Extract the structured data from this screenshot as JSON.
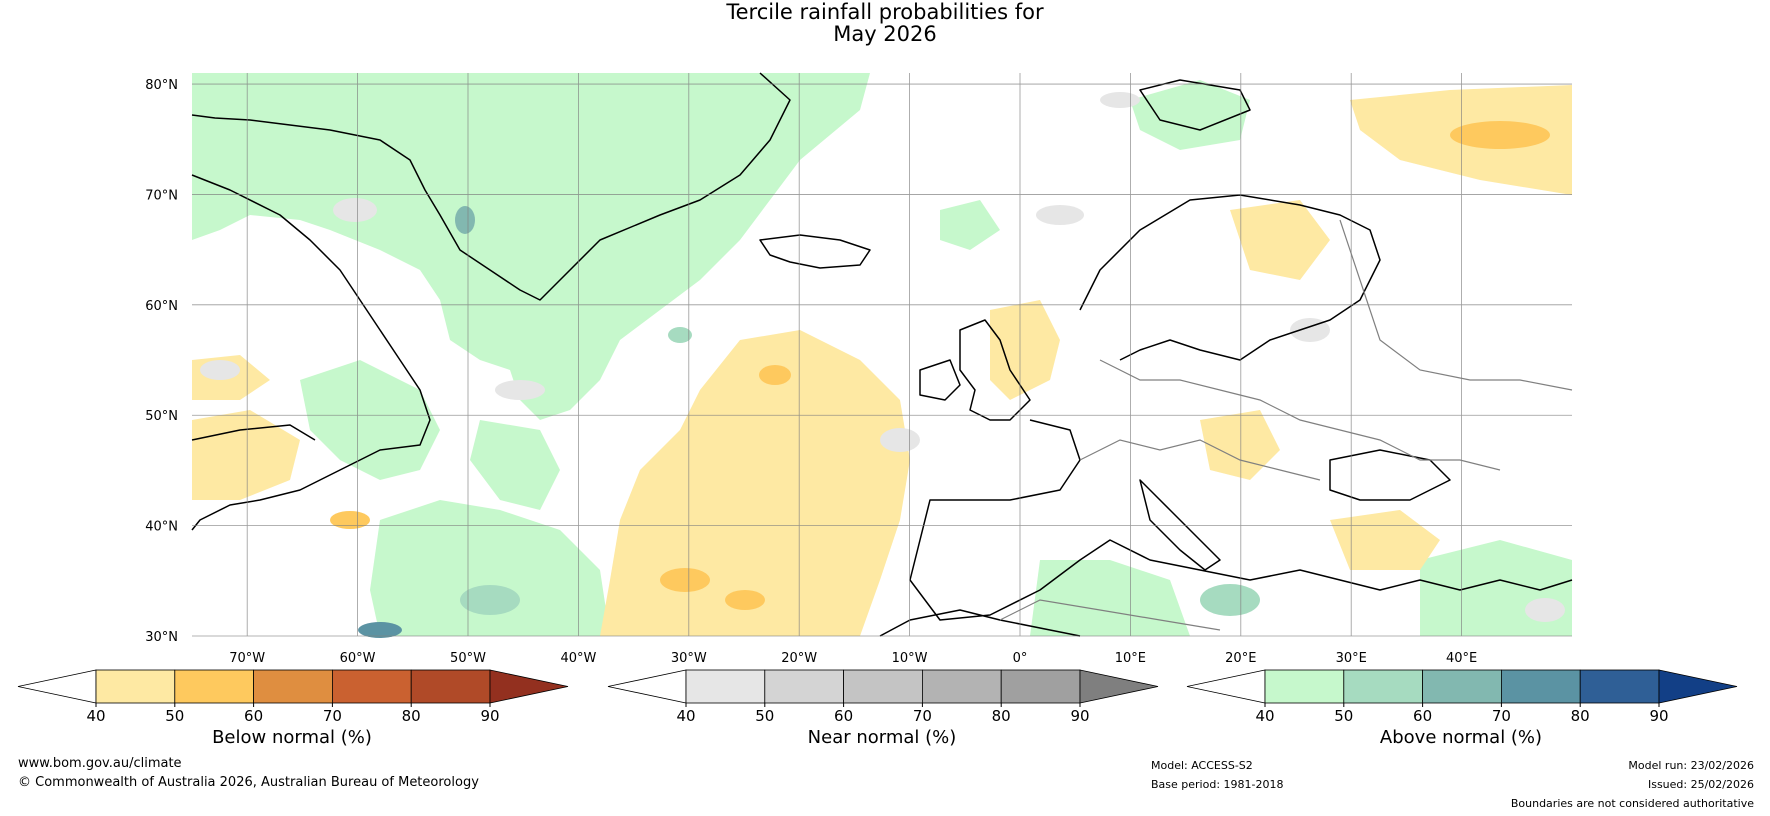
{
  "title": {
    "line1": "Tercile rainfall probabilities for",
    "line2": "May 2026"
  },
  "map": {
    "lat_labels": [
      "30°N",
      "40°N",
      "50°N",
      "60°N",
      "70°N",
      "80°N"
    ],
    "lon_labels": [
      "70°W",
      "60°W",
      "50°W",
      "40°W",
      "30°W",
      "20°W",
      "10°W",
      "0°",
      "10°E",
      "20°E",
      "30°E",
      "40°E"
    ],
    "lat_range": [
      30,
      81
    ],
    "lon_range": [
      -75,
      50
    ]
  },
  "colorbars": [
    {
      "title": "Below normal (%)",
      "ticks": [
        "40",
        "50",
        "60",
        "70",
        "80",
        "90"
      ],
      "colors": [
        "#ffffff",
        "#fee9a3",
        "#fec95e",
        "#df8e40",
        "#ca6130",
        "#b04a28",
        "#93301f"
      ]
    },
    {
      "title": "Near normal (%)",
      "ticks": [
        "40",
        "50",
        "60",
        "70",
        "80",
        "90"
      ],
      "colors": [
        "#ffffff",
        "#e6e6e6",
        "#d4d4d4",
        "#c4c4c4",
        "#b3b3b3",
        "#a0a0a0",
        "#7f7f7f"
      ]
    },
    {
      "title": "Above normal (%)",
      "ticks": [
        "40",
        "50",
        "60",
        "70",
        "80",
        "90"
      ],
      "colors": [
        "#ffffff",
        "#c6f8cc",
        "#a6dbc0",
        "#82b8b0",
        "#5b93a3",
        "#2f5f96",
        "#123f86"
      ]
    }
  ],
  "footer": {
    "website": "www.bom.gov.au/climate",
    "copyright": "© Commonwealth of Australia 2026, Australian Bureau of Meteorology",
    "model": "Model: ACCESS-S2",
    "base_period": "Base period: 1981-2018",
    "model_run": "Model run: 23/02/2026",
    "issued": "Issued: 25/02/2026",
    "disclaimer": "Boundaries are not considered authoritative"
  }
}
